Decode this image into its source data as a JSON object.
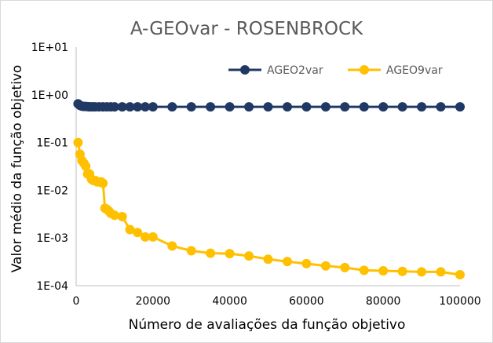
{
  "chart_data": {
    "type": "line",
    "title": "A-GEOvar - ROSENBROCK",
    "xlabel": "Número de avaliações da função objetivo",
    "ylabel": "Valor médio da função objetivo",
    "y_scale": "log",
    "xlim": [
      0,
      100000
    ],
    "ylim": [
      0.0001,
      10
    ],
    "x_tick_labels": [
      "0",
      "20000",
      "40000",
      "60000",
      "80000",
      "100000"
    ],
    "y_tick_labels": [
      "1E-04",
      "1E-03",
      "1E-02",
      "1E-01",
      "1E+00",
      "1E+01"
    ],
    "legend_position": "top-right",
    "series": [
      {
        "name": "AGEO2var",
        "color": "#203864",
        "points": [
          [
            500,
            0.65
          ],
          [
            1000,
            0.6
          ],
          [
            1500,
            0.58
          ],
          [
            2000,
            0.57
          ],
          [
            2500,
            0.57
          ],
          [
            3000,
            0.565
          ],
          [
            3500,
            0.56
          ],
          [
            4000,
            0.56
          ],
          [
            4500,
            0.56
          ],
          [
            5000,
            0.56
          ],
          [
            6000,
            0.56
          ],
          [
            7000,
            0.56
          ],
          [
            8000,
            0.56
          ],
          [
            9000,
            0.56
          ],
          [
            10000,
            0.56
          ],
          [
            12000,
            0.56
          ],
          [
            14000,
            0.56
          ],
          [
            16000,
            0.56
          ],
          [
            18000,
            0.56
          ],
          [
            20000,
            0.56
          ],
          [
            25000,
            0.56
          ],
          [
            30000,
            0.56
          ],
          [
            35000,
            0.56
          ],
          [
            40000,
            0.56
          ],
          [
            45000,
            0.56
          ],
          [
            50000,
            0.56
          ],
          [
            55000,
            0.56
          ],
          [
            60000,
            0.56
          ],
          [
            65000,
            0.56
          ],
          [
            70000,
            0.56
          ],
          [
            75000,
            0.56
          ],
          [
            80000,
            0.56
          ],
          [
            85000,
            0.56
          ],
          [
            90000,
            0.56
          ],
          [
            95000,
            0.56
          ],
          [
            100000,
            0.56
          ]
        ]
      },
      {
        "name": "AGEO9var",
        "color": "#FFC000",
        "points": [
          [
            500,
            0.1
          ],
          [
            1000,
            0.057
          ],
          [
            1500,
            0.042
          ],
          [
            2000,
            0.037
          ],
          [
            2500,
            0.032
          ],
          [
            3000,
            0.022
          ],
          [
            3500,
            0.022
          ],
          [
            4000,
            0.017
          ],
          [
            4500,
            0.016
          ],
          [
            5000,
            0.016
          ],
          [
            5500,
            0.015
          ],
          [
            6000,
            0.015
          ],
          [
            6500,
            0.015
          ],
          [
            7000,
            0.014
          ],
          [
            7500,
            0.0042
          ],
          [
            8000,
            0.004
          ],
          [
            8500,
            0.0037
          ],
          [
            9000,
            0.0033
          ],
          [
            10000,
            0.003
          ],
          [
            12000,
            0.0028
          ],
          [
            14000,
            0.0015
          ],
          [
            16000,
            0.0013
          ],
          [
            18000,
            0.00105
          ],
          [
            20000,
            0.00105
          ],
          [
            25000,
            0.00068
          ],
          [
            30000,
            0.00054
          ],
          [
            35000,
            0.00048
          ],
          [
            40000,
            0.00047
          ],
          [
            45000,
            0.00042
          ],
          [
            50000,
            0.00036
          ],
          [
            55000,
            0.00032
          ],
          [
            60000,
            0.00029
          ],
          [
            65000,
            0.00026
          ],
          [
            70000,
            0.00024
          ],
          [
            75000,
            0.00021
          ],
          [
            80000,
            0.000205
          ],
          [
            85000,
            0.0002
          ],
          [
            90000,
            0.000195
          ],
          [
            95000,
            0.000195
          ],
          [
            100000,
            0.00017
          ]
        ]
      }
    ]
  }
}
